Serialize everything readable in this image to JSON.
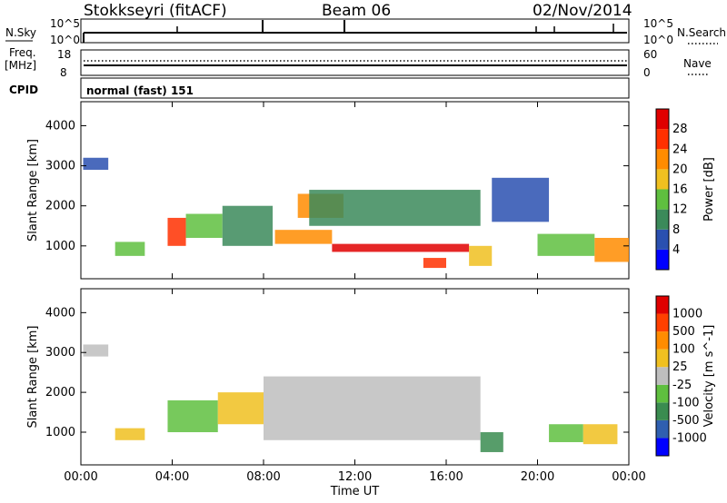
{
  "header": {
    "station": "Stokkseyri (fitACF)",
    "beam": "Beam 06",
    "date": "02/Nov/2014",
    "mode": "normal (fast) 151"
  },
  "side_labels": {
    "nsky": "N.Sky",
    "freq": "Freq.",
    "freq_unit": "[MHz]",
    "cpid": "CPID",
    "nsearch": "N.Search",
    "nave": "Nave"
  },
  "summary_ticks": {
    "noise_top_left": "10^5",
    "noise_bottom_left": "10^0",
    "noise_top_right": "10^5",
    "noise_bottom_right": "10^0",
    "freq_top": "18",
    "freq_bottom": "8",
    "nave_top": "60",
    "nave_bottom": "0"
  },
  "colors": {
    "power_scale": [
      "#0000ff",
      "#2a50b0",
      "#3b8a5a",
      "#5fbf3f",
      "#f0c020",
      "#ff8c00",
      "#ff3000",
      "#e00000"
    ],
    "velocity_scale": [
      "#0000ff",
      "#2f5fb0",
      "#3a8c50",
      "#5fbf3f",
      "#bebebe",
      "#f0c020",
      "#ff8c00",
      "#ff4000",
      "#e00000"
    ]
  },
  "chart_data": [
    {
      "type": "heatmap",
      "title": "Power",
      "xlabel": "Time UT",
      "ylabel": "Slant Range [km]",
      "x_ticks": [
        "00:00",
        "04:00",
        "08:00",
        "12:00",
        "16:00",
        "20:00",
        "00:00"
      ],
      "xlim": [
        0,
        24
      ],
      "y_ticks": [
        "1000",
        "2000",
        "3000",
        "4000"
      ],
      "ylim": [
        180,
        4600
      ],
      "colorbar": {
        "label": "Power [dB]",
        "ticks": [
          "4",
          "8",
          "12",
          "16",
          "20",
          "24",
          "28"
        ],
        "range": [
          0,
          32
        ]
      },
      "regions": [
        {
          "t0": 0.1,
          "t1": 1.2,
          "r0": 2900,
          "r1": 3200,
          "value": 6
        },
        {
          "t0": 1.5,
          "t1": 2.8,
          "r0": 750,
          "r1": 1100,
          "value": 14
        },
        {
          "t0": 3.8,
          "t1": 4.6,
          "r0": 1000,
          "r1": 1700,
          "value": 24
        },
        {
          "t0": 4.6,
          "t1": 6.2,
          "r0": 1200,
          "r1": 1800,
          "value": 14
        },
        {
          "t0": 6.2,
          "t1": 8.4,
          "r0": 1000,
          "r1": 2000,
          "value": 10
        },
        {
          "t0": 8.5,
          "t1": 11.0,
          "r0": 1050,
          "r1": 1400,
          "value": 22
        },
        {
          "t0": 9.5,
          "t1": 11.5,
          "r0": 1700,
          "r1": 2300,
          "value": 20
        },
        {
          "t0": 10.0,
          "t1": 17.5,
          "r0": 1500,
          "r1": 2400,
          "value": 10
        },
        {
          "t0": 11.0,
          "t1": 17.0,
          "r0": 850,
          "r1": 1050,
          "value": 30
        },
        {
          "t0": 15.0,
          "t1": 16.0,
          "r0": 450,
          "r1": 700,
          "value": 26
        },
        {
          "t0": 17.0,
          "t1": 18.0,
          "r0": 500,
          "r1": 1000,
          "value": 18
        },
        {
          "t0": 18.0,
          "t1": 20.5,
          "r0": 1600,
          "r1": 2700,
          "value": 6
        },
        {
          "t0": 20.0,
          "t1": 22.5,
          "r0": 750,
          "r1": 1300,
          "value": 12
        },
        {
          "t0": 22.5,
          "t1": 24.0,
          "r0": 600,
          "r1": 1200,
          "value": 22
        }
      ]
    },
    {
      "type": "heatmap",
      "title": "Velocity",
      "xlabel": "Time UT",
      "ylabel": "Slant Range [km]",
      "x_ticks": [
        "00:00",
        "04:00",
        "08:00",
        "12:00",
        "16:00",
        "20:00",
        "00:00"
      ],
      "xlim": [
        0,
        24
      ],
      "y_ticks": [
        "1000",
        "2000",
        "3000",
        "4000"
      ],
      "ylim": [
        180,
        4600
      ],
      "colorbar": {
        "label": "Velocity [m s^-1]",
        "ticks": [
          "1000",
          "500",
          "100",
          "25",
          "-25",
          "-100",
          "-500",
          "-1000"
        ],
        "range": [
          -1250,
          1250
        ]
      },
      "regions": [
        {
          "t0": 0.1,
          "t1": 1.2,
          "r0": 2900,
          "r1": 3200,
          "value": 0
        },
        {
          "t0": 1.5,
          "t1": 2.8,
          "r0": 800,
          "r1": 1100,
          "value": 300
        },
        {
          "t0": 3.8,
          "t1": 6.0,
          "r0": 1000,
          "r1": 1800,
          "value": -300
        },
        {
          "t0": 6.0,
          "t1": 8.0,
          "r0": 1200,
          "r1": 2000,
          "value": 200
        },
        {
          "t0": 8.0,
          "t1": 17.5,
          "r0": 800,
          "r1": 2400,
          "value": 0
        },
        {
          "t0": 17.5,
          "t1": 18.5,
          "r0": 500,
          "r1": 1000,
          "value": -600
        },
        {
          "t0": 20.5,
          "t1": 22.0,
          "r0": 750,
          "r1": 1200,
          "value": -400
        },
        {
          "t0": 22.0,
          "t1": 23.5,
          "r0": 700,
          "r1": 1200,
          "value": 150
        }
      ]
    }
  ]
}
